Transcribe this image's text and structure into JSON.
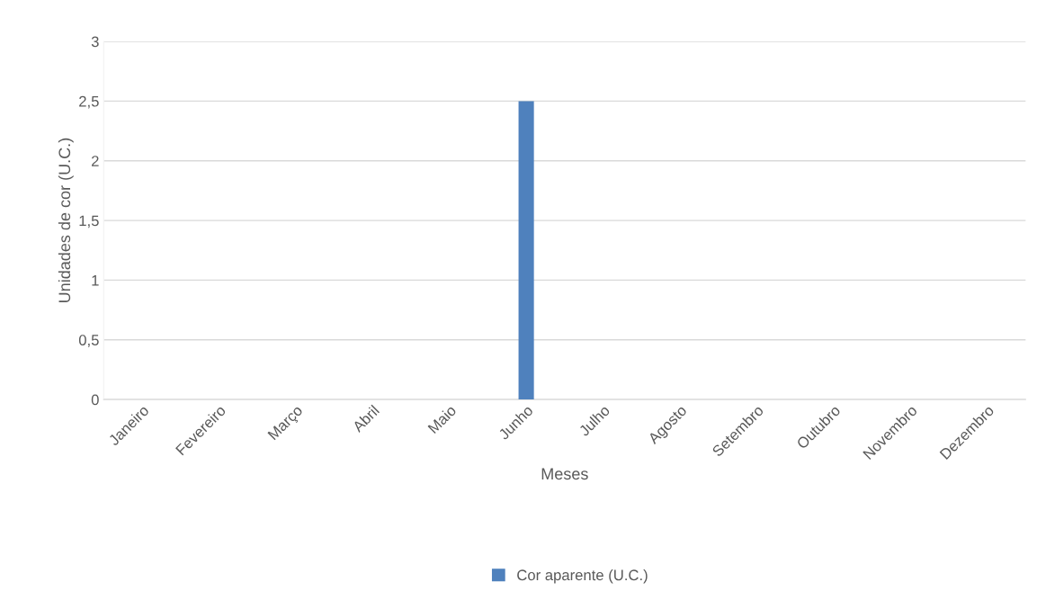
{
  "chart_data": {
    "type": "bar",
    "xlabel": "Meses",
    "ylabel": "Unidades de cor (U.C.)",
    "categories": [
      "Janeiro",
      "Fevereiro",
      "Março",
      "Abril",
      "Maio",
      "Junho",
      "Julho",
      "Agosto",
      "Setembro",
      "Outubro",
      "Novembro",
      "Dezembro"
    ],
    "series": [
      {
        "name": "Cor aparente (U.C.)",
        "color": "#4f81bd",
        "values": [
          0,
          0,
          0,
          0,
          0,
          2.5,
          0,
          0,
          0,
          0,
          0,
          0
        ]
      }
    ],
    "ylim": [
      0,
      3
    ],
    "yticks": [
      0,
      {
        "value": 0.5,
        "label": "0,5"
      },
      1,
      {
        "value": 1.5,
        "label": "1,5"
      },
      2,
      {
        "value": 2.5,
        "label": "2,5"
      },
      3
    ],
    "grid": "y",
    "legend": "bottom"
  }
}
